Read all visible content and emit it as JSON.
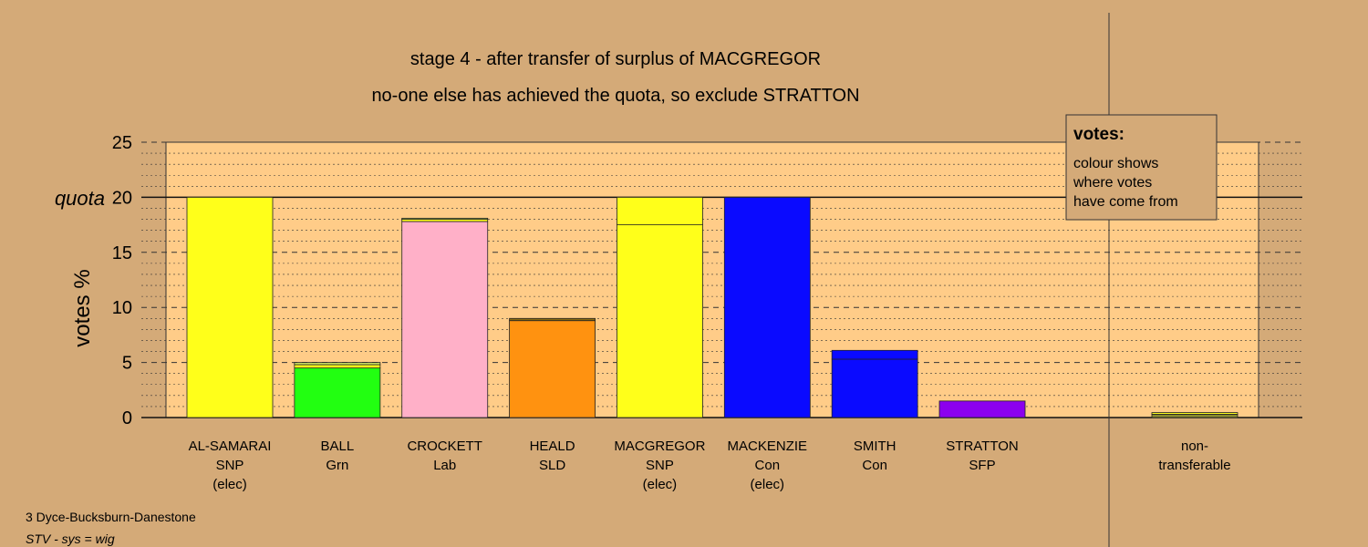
{
  "chart_data": {
    "type": "bar",
    "title": "stage 4 - after transfer of surplus of MACGREGOR",
    "subtitle": "no-one else has achieved the quota, so exclude STRATTON",
    "ylabel": "votes %",
    "ylim": [
      0,
      25
    ],
    "yticks": [
      0,
      5,
      10,
      15,
      20,
      25
    ],
    "quota": 20,
    "quota_label": "quota",
    "grid": true,
    "bars": [
      {
        "name": "AL-SAMARAI",
        "party": "SNP",
        "note": "(elec)",
        "segments": [
          {
            "value": 20,
            "color": "#ffff1a"
          }
        ]
      },
      {
        "name": "BALL",
        "party": "Grn",
        "note": "",
        "segments": [
          {
            "value": 4.5,
            "color": "#22ff11"
          },
          {
            "value": 0.3,
            "color": "#ffff1a"
          },
          {
            "value": 0.2,
            "color": "#c8e060"
          }
        ]
      },
      {
        "name": "CROCKETT",
        "party": "Lab",
        "note": "",
        "segments": [
          {
            "value": 17.8,
            "color": "#ffb0c8"
          },
          {
            "value": 0.2,
            "color": "#ffff1a"
          },
          {
            "value": 0.1,
            "color": "#c8e060"
          }
        ]
      },
      {
        "name": "HEALD",
        "party": "SLD",
        "note": "",
        "segments": [
          {
            "value": 8.8,
            "color": "#ff9210"
          },
          {
            "value": 0.2,
            "color": "#8a6a10"
          }
        ]
      },
      {
        "name": "MACGREGOR",
        "party": "SNP",
        "note": "(elec)",
        "segments": [
          {
            "value": 17.5,
            "color": "#ffff1a"
          },
          {
            "value": 2.5,
            "color": "#ffff1a"
          }
        ]
      },
      {
        "name": "MACKENZIE",
        "party": "Con",
        "note": "(elec)",
        "segments": [
          {
            "value": 20,
            "color": "#0a0aff"
          }
        ]
      },
      {
        "name": "SMITH",
        "party": "Con",
        "note": "",
        "segments": [
          {
            "value": 5.3,
            "color": "#0a0aff"
          },
          {
            "value": 0.8,
            "color": "#0a0aff"
          }
        ]
      },
      {
        "name": "STRATTON",
        "party": "SFP",
        "note": "",
        "segments": [
          {
            "value": 1.5,
            "color": "#8c00ee"
          }
        ]
      }
    ],
    "nontransferable": {
      "label_lines": [
        "non-",
        "transferable"
      ],
      "segments": [
        {
          "value": 0.3,
          "color": "#8a8a30"
        },
        {
          "value": 0.15,
          "color": "#ffff1a"
        }
      ]
    },
    "legend": {
      "title": "votes:",
      "lines": [
        "colour shows",
        "where votes",
        "have come from"
      ],
      "position": "top-right"
    }
  },
  "footer": {
    "ward": "3 Dyce-Bucksburn-Danestone",
    "system": "STV - sys = wig"
  },
  "colors": {
    "background": "#d4aa78",
    "plot_area": "#ffcc88",
    "grid": "#333333"
  }
}
